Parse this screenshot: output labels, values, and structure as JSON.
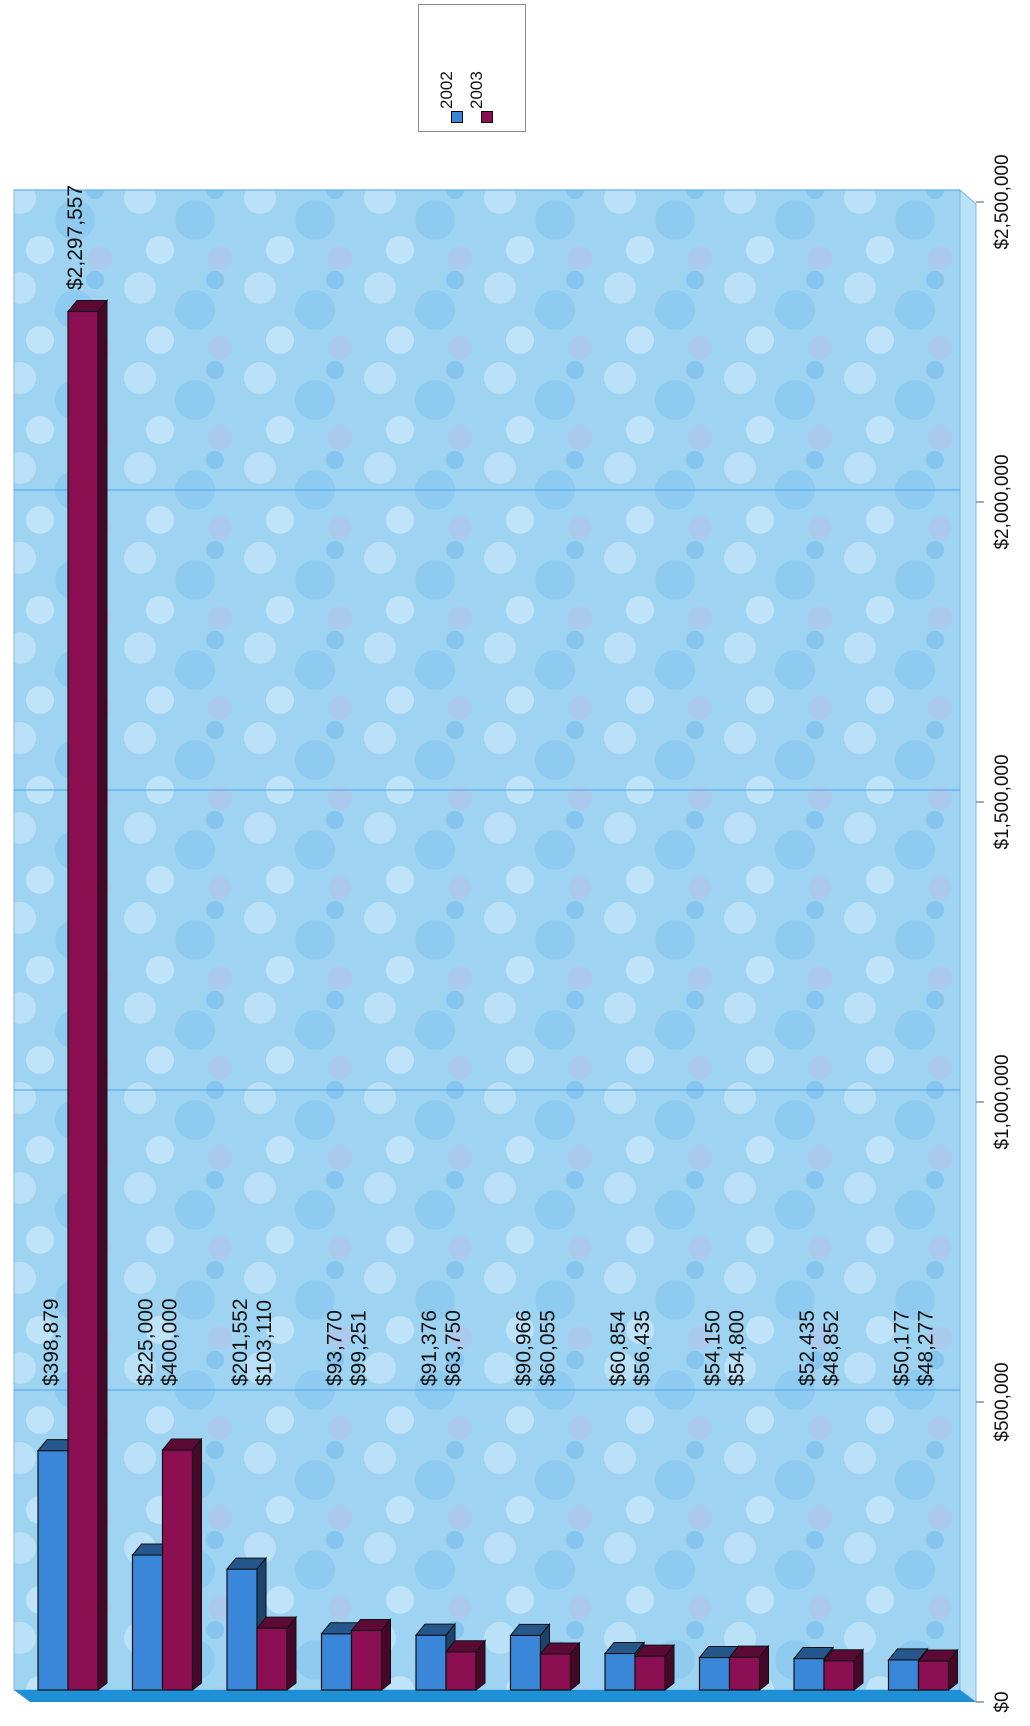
{
  "chart_data": {
    "type": "bar",
    "orientation": "rotated-90",
    "categories": [
      "",
      "",
      "",
      "",
      "",
      "",
      "",
      "",
      "",
      ""
    ],
    "series": [
      {
        "name": "2002",
        "color": "#3a86d8",
        "values": [
          398879,
          225000,
          201552,
          93770,
          91376,
          90966,
          60854,
          54150,
          52435,
          50177
        ]
      },
      {
        "name": "2003",
        "color": "#8b0f52",
        "values": [
          2297557,
          400000,
          103110,
          99251,
          63750,
          60055,
          56435,
          54800,
          48852,
          48277
        ]
      }
    ],
    "value_labels": [
      [
        "$398,879",
        "$2,297,557"
      ],
      [
        "$225,000",
        "$400,000"
      ],
      [
        "$201,552",
        "$103,110"
      ],
      [
        "$93,770",
        "$99,251"
      ],
      [
        "$91,376",
        "$63,750"
      ],
      [
        "$90,966",
        "$60,055"
      ],
      [
        "$60,854",
        "$56,435"
      ],
      [
        "$54,150",
        "$54,800"
      ],
      [
        "$52,435",
        "$48,852"
      ],
      [
        "$50,177",
        "$48,277"
      ]
    ],
    "ylim": [
      0,
      2500000
    ],
    "yticks": [
      0,
      500000,
      1000000,
      1500000,
      2000000,
      2500000
    ],
    "ytick_labels": [
      "$0",
      "$500,000",
      "$1,000,000",
      "$1,500,000",
      "$2,000,000",
      "$2,500,000"
    ],
    "grid": true,
    "legend_position": "top-right",
    "colors": {
      "background": "#9fd3f2",
      "floor": "#1f8fd6",
      "grid": "#4aa3e6"
    }
  },
  "legend": {
    "items": [
      {
        "label": "2002",
        "color": "#3a86d8"
      },
      {
        "label": "2003",
        "color": "#8b0f52"
      }
    ]
  }
}
